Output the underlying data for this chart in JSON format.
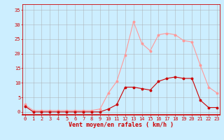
{
  "x": [
    0,
    1,
    2,
    3,
    4,
    5,
    6,
    7,
    8,
    9,
    10,
    11,
    12,
    13,
    14,
    15,
    16,
    17,
    18,
    19,
    20,
    21,
    22,
    23
  ],
  "wind_mean": [
    2,
    0,
    0,
    0,
    0,
    0,
    0,
    0,
    0,
    0,
    1,
    2.5,
    8.5,
    8.5,
    8,
    7.5,
    10.5,
    11.5,
    12,
    11.5,
    11.5,
    4,
    1.5,
    1.5
  ],
  "wind_gust": [
    2.5,
    0.5,
    0.5,
    0.5,
    0.5,
    0.5,
    0.5,
    0.5,
    0.5,
    1,
    6.5,
    10.5,
    19.5,
    31,
    23.5,
    21,
    26.5,
    27,
    26.5,
    24.5,
    24,
    16,
    8.5,
    6.5
  ],
  "mean_color": "#cc0000",
  "gust_color": "#ff9999",
  "bg_color": "#cceeff",
  "grid_color": "#aaaaaa",
  "xlabel": "Vent moyen/en rafales ( km/h )",
  "xlabel_color": "#cc0000",
  "xticks": [
    0,
    1,
    2,
    3,
    4,
    5,
    6,
    7,
    8,
    9,
    10,
    11,
    12,
    13,
    14,
    15,
    16,
    17,
    18,
    19,
    20,
    21,
    22,
    23
  ],
  "yticks": [
    0,
    5,
    10,
    15,
    20,
    25,
    30,
    35
  ],
  "ylim": [
    -1,
    37
  ],
  "xlim": [
    -0.3,
    23.3
  ],
  "tick_color": "#cc0000",
  "tick_fontsize": 5.0,
  "xlabel_fontsize": 6.0
}
